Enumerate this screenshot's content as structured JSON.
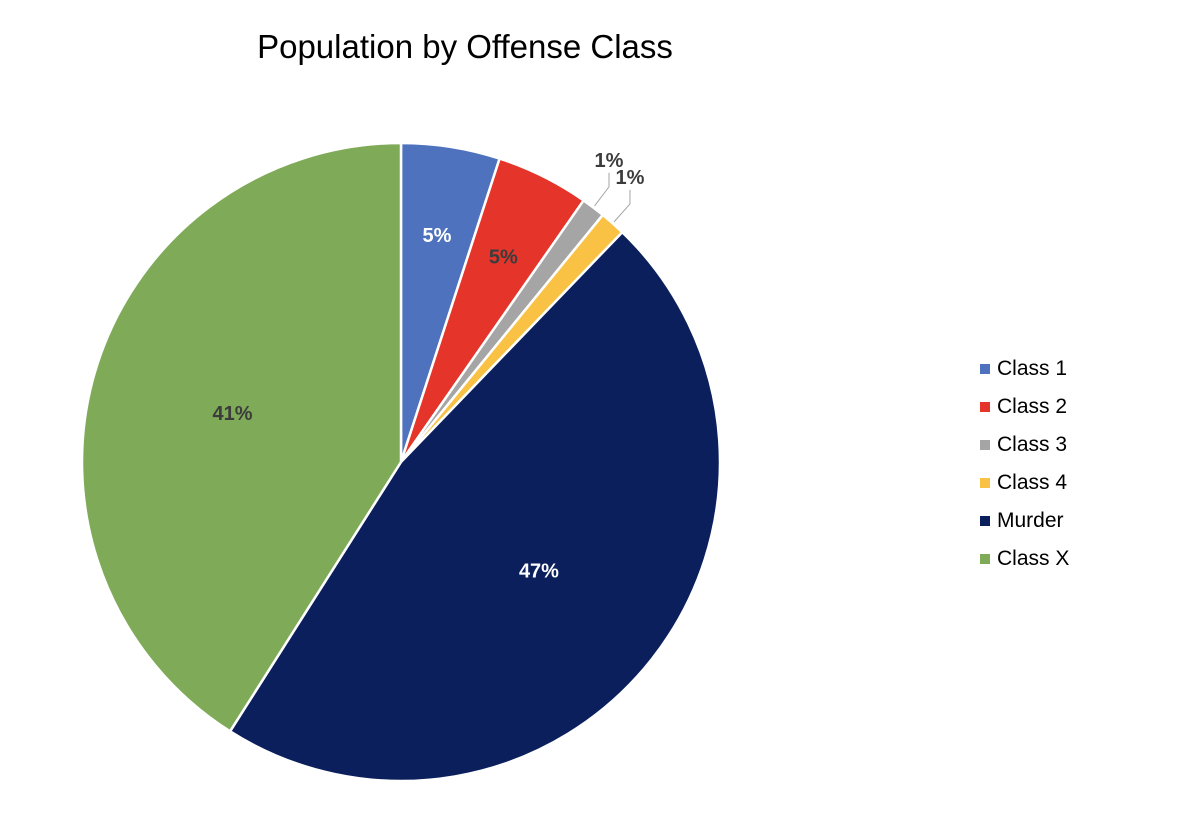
{
  "chart_data": {
    "type": "pie",
    "title": "Population by Offense Class",
    "legend_position": "right",
    "slices": [
      {
        "name": "Class 1",
        "value": 5,
        "label": "5%",
        "color": "#4F72BE",
        "label_color": "#FFFFFF"
      },
      {
        "name": "Class 2",
        "value": 4.7,
        "label": "5%",
        "color": "#E5342A",
        "label_color": "#3C3C3C"
      },
      {
        "name": "Class 3",
        "value": 1.2,
        "label": "1%",
        "color": "#A5A5A5",
        "label_color": "#3C3C3C"
      },
      {
        "name": "Class 4",
        "value": 1.3,
        "label": "1%",
        "color": "#F9C244",
        "label_color": "#3C3C3C"
      },
      {
        "name": "Murder",
        "value": 46.8,
        "label": "47%",
        "color": "#0B1F5C",
        "label_color": "#FFFFFF"
      },
      {
        "name": "Class X",
        "value": 41,
        "label": "41%",
        "color": "#7FAB59",
        "label_color": "#3C3C3C"
      }
    ]
  }
}
